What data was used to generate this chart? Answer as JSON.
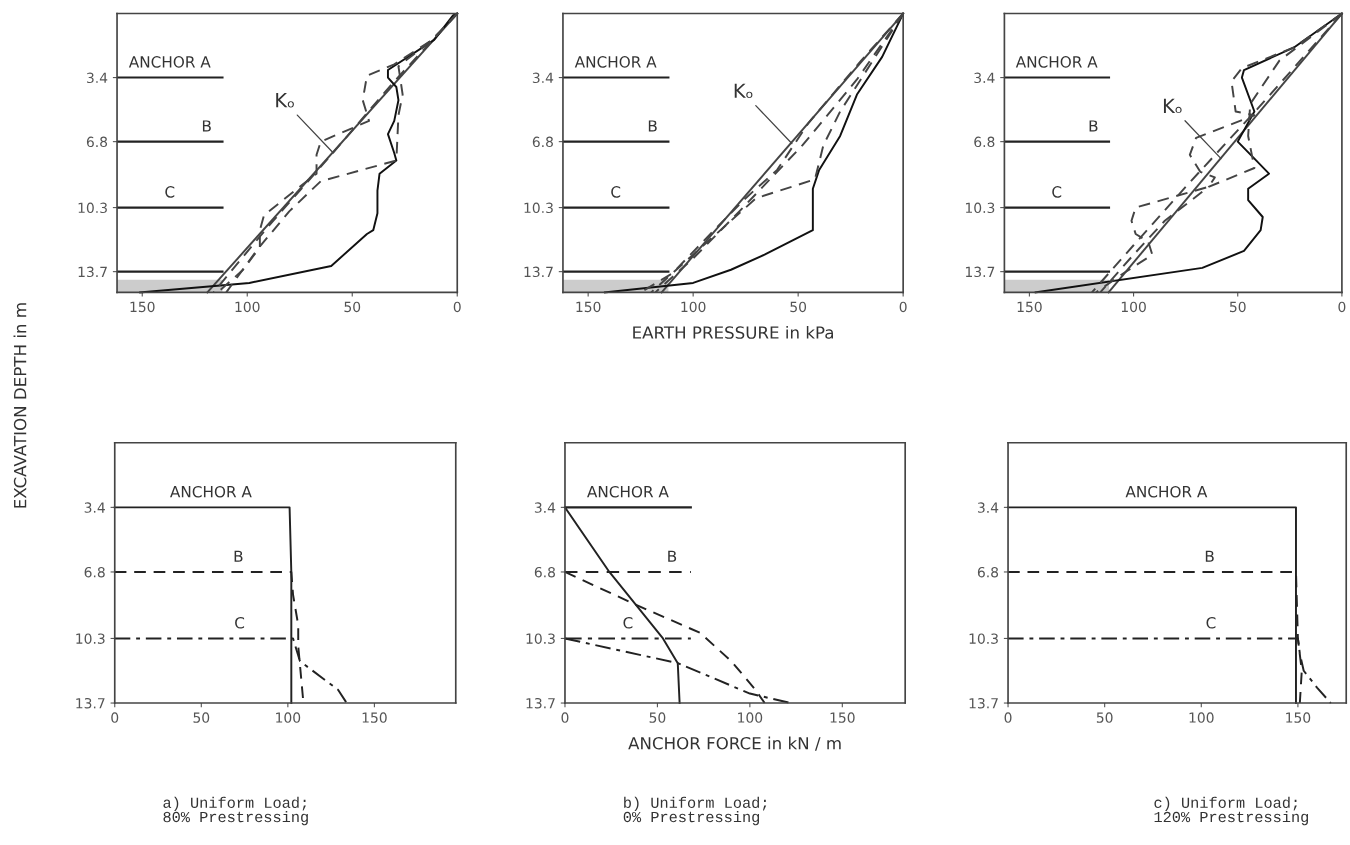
{
  "chart_data": [
    {
      "type": "line",
      "ylabel": "EXCAVATION DEPTH in m",
      "xlim": [
        162,
        0
      ],
      "ylim": [
        14.8,
        0
      ],
      "xticks": [
        150,
        100,
        50,
        0
      ],
      "yticks": [
        3.4,
        6.8,
        10.3,
        13.7
      ],
      "grid": false,
      "legend": false,
      "series": [
        {
          "color": "#444444",
          "line_style": "solid",
          "x": [
            0,
            119
          ],
          "values": [
            0,
            14.8
          ]
        },
        {
          "color": "#111111",
          "line_style": "solid",
          "x": [
            0,
            2,
            11,
            33,
            33,
            29,
            28,
            30,
            33,
            30,
            29,
            37,
            38,
            38,
            40,
            43,
            60,
            99,
            151
          ],
          "values": [
            0,
            0.1,
            1.4,
            3.0,
            3.4,
            3.9,
            4.6,
            5.7,
            6.4,
            7.4,
            7.8,
            8.5,
            9.4,
            10.6,
            11.5,
            11.7,
            13.4,
            14.3,
            14.8
          ]
        },
        {
          "color": "#444444",
          "line_style": "dashed",
          "x": [
            0,
            12,
            30,
            43,
            45,
            42,
            65,
            67,
            67,
            75,
            92,
            94,
            94,
            102,
            114
          ],
          "values": [
            0,
            1.4,
            2.7,
            3.3,
            4.6,
            5.7,
            6.8,
            7.5,
            8.5,
            9.2,
            10.7,
            11.5,
            12.4,
            13.6,
            14.8
          ]
        },
        {
          "color": "#444444",
          "line_style": "dashed",
          "x": [
            0,
            12,
            28,
            26,
            28,
            29,
            65,
            80,
            95,
            110
          ],
          "values": [
            0,
            1.4,
            2.8,
            4.3,
            5.4,
            7.8,
            8.9,
            10.5,
            12.5,
            14.8
          ]
        },
        {
          "color": "#444444",
          "line_style": "dashed",
          "x": [
            0,
            30,
            60,
            90,
            116
          ],
          "values": [
            0,
            3.6,
            7.5,
            11.3,
            14.8
          ]
        }
      ],
      "ref_lines": [
        {
          "axis": "y",
          "value": 3.4,
          "label": "ANCHOR A",
          "line_style": "solid"
        },
        {
          "axis": "y",
          "value": 6.8,
          "label": "B",
          "line_style": "solid"
        },
        {
          "axis": "y",
          "value": 10.3,
          "label": "C",
          "line_style": "solid"
        },
        {
          "axis": "y",
          "value": 13.7,
          "line_style": "solid"
        }
      ],
      "annotations": [
        {
          "text": "Kₒ",
          "x": 59,
          "y": 7.4
        }
      ]
    },
    {
      "type": "line",
      "xlabel": "EARTH PRESSURE in kPa",
      "xlim": [
        162,
        0
      ],
      "ylim": [
        14.8,
        0
      ],
      "xticks": [
        150,
        100,
        50,
        0
      ],
      "yticks": [
        3.4,
        6.8,
        10.3,
        13.7
      ],
      "grid": false,
      "legend": false,
      "series": [
        {
          "color": "#444444",
          "line_style": "solid",
          "x": [
            0,
            115
          ],
          "values": [
            0,
            14.8
          ]
        },
        {
          "color": "#111111",
          "line_style": "solid",
          "x": [
            0,
            10,
            22,
            30,
            40,
            43,
            43,
            43,
            66,
            82,
            100,
            142
          ],
          "values": [
            0,
            2.3,
            4.3,
            6.5,
            8.3,
            9.3,
            10.6,
            11.5,
            12.8,
            13.6,
            14.3,
            14.8
          ]
        },
        {
          "color": "#444444",
          "line_style": "dashed",
          "x": [
            0,
            20,
            45,
            60,
            75,
            90,
            110,
            125
          ],
          "values": [
            0,
            2.5,
            5.8,
            8.3,
            9.8,
            11.5,
            13.8,
            14.8
          ]
        },
        {
          "color": "#444444",
          "line_style": "dashed",
          "x": [
            0,
            15,
            30,
            38,
            42,
            70,
            90,
            120
          ],
          "values": [
            0,
            2.6,
            5.2,
            7.0,
            8.8,
            9.8,
            11.8,
            14.8
          ]
        },
        {
          "color": "#444444",
          "line_style": "dashed",
          "x": [
            0,
            22,
            48,
            78,
            100,
            118
          ],
          "values": [
            0,
            3.5,
            7.0,
            10.5,
            13.0,
            14.8
          ]
        }
      ],
      "ref_lines": [
        {
          "axis": "y",
          "value": 3.4,
          "label": "ANCHOR A",
          "line_style": "solid"
        },
        {
          "axis": "y",
          "value": 6.8,
          "label": "B",
          "line_style": "solid"
        },
        {
          "axis": "y",
          "value": 10.3,
          "label": "C",
          "line_style": "solid"
        },
        {
          "axis": "y",
          "value": 13.7,
          "line_style": "solid"
        }
      ],
      "annotations": [
        {
          "text": "Kₒ",
          "x": 53,
          "y": 6.9
        }
      ]
    },
    {
      "type": "line",
      "xlim": [
        162,
        0
      ],
      "ylim": [
        14.8,
        0
      ],
      "xticks": [
        150,
        100,
        50,
        0
      ],
      "yticks": [
        3.4,
        6.8,
        10.3,
        13.7
      ],
      "grid": false,
      "legend": false,
      "series": [
        {
          "color": "#444444",
          "line_style": "solid",
          "x": [
            0,
            112
          ],
          "values": [
            0,
            14.8
          ]
        },
        {
          "color": "#111111",
          "line_style": "solid",
          "x": [
            0,
            23,
            47,
            48,
            42,
            50,
            42,
            35,
            45,
            45,
            38,
            39,
            47,
            67,
            147
          ],
          "values": [
            0,
            1.8,
            3.0,
            3.4,
            5.2,
            6.8,
            7.7,
            8.5,
            9.3,
            9.9,
            10.8,
            11.5,
            12.6,
            13.5,
            14.8
          ]
        },
        {
          "color": "#444444",
          "line_style": "dashed",
          "x": [
            0,
            23,
            48,
            53,
            51,
            42,
            70,
            73,
            68,
            61,
            64,
            99,
            101,
            99,
            93,
            91,
            105,
            118
          ],
          "values": [
            0,
            1.8,
            2.9,
            3.6,
            5.2,
            5.4,
            6.6,
            7.5,
            8.4,
            8.7,
            9.2,
            10.3,
            11.0,
            11.7,
            12.1,
            12.8,
            13.8,
            14.8
          ]
        },
        {
          "color": "#444444",
          "line_style": "dashed",
          "x": [
            0,
            30,
            44,
            45,
            42,
            64,
            85,
            100,
            116
          ],
          "values": [
            0,
            2.5,
            4.8,
            6.5,
            8.2,
            9.2,
            11.0,
            12.8,
            14.8
          ]
        },
        {
          "color": "#444444",
          "line_style": "dashed",
          "x": [
            0,
            40,
            75,
            100,
            120
          ],
          "values": [
            0,
            5.0,
            9.2,
            12.3,
            14.8
          ]
        }
      ],
      "ref_lines": [
        {
          "axis": "y",
          "value": 3.4,
          "label": "ANCHOR A",
          "line_style": "solid"
        },
        {
          "axis": "y",
          "value": 6.8,
          "label": "B",
          "line_style": "solid"
        },
        {
          "axis": "y",
          "value": 10.3,
          "label": "C",
          "line_style": "solid"
        },
        {
          "axis": "y",
          "value": 13.7,
          "line_style": "solid"
        }
      ],
      "annotations": [
        {
          "text": "Kₒ",
          "x": 58,
          "y": 7.7
        }
      ]
    },
    {
      "type": "line",
      "title": "a) Uniform Load;\n80% Prestressing",
      "xlim": [
        0,
        197
      ],
      "ylim": [
        13.7,
        0
      ],
      "xticks": [
        0,
        50,
        100,
        150
      ],
      "yticks": [
        3.4,
        6.8,
        10.3,
        13.7
      ],
      "grid": false,
      "legend": false,
      "series": [
        {
          "name": "ANCHOR A",
          "color": "#222222",
          "line_style": "solid",
          "x": [
            0,
            101,
            102,
            102,
            102
          ],
          "values": [
            3.4,
            3.4,
            6.8,
            10.3,
            13.7
          ]
        },
        {
          "name": "B",
          "color": "#222222",
          "line_style": "dashed",
          "x": [
            0,
            102,
            103,
            106,
            106,
            109
          ],
          "values": [
            6.8,
            6.8,
            8.0,
            9.6,
            10.7,
            13.7
          ]
        },
        {
          "name": "C",
          "color": "#222222",
          "line_style": "dashdot",
          "x": [
            0,
            103,
            107,
            129,
            134
          ],
          "values": [
            10.3,
            10.3,
            11.5,
            13.0,
            13.7
          ]
        }
      ]
    },
    {
      "type": "line",
      "title": "b) Uniform Load;\n0% Prestressing",
      "xlabel": "ANCHOR FORCE in kN / m",
      "xlim": [
        0,
        184
      ],
      "ylim": [
        13.7,
        0
      ],
      "xticks": [
        0,
        50,
        100,
        150
      ],
      "yticks": [
        3.4,
        6.8,
        10.3,
        13.7
      ],
      "grid": false,
      "legend": false,
      "series": [
        {
          "color": "#222222",
          "line_style": "solid",
          "x": [
            0,
            24,
            53,
            61,
            62
          ],
          "values": [
            3.4,
            6.8,
            10.3,
            11.6,
            13.7
          ]
        },
        {
          "color": "#222222",
          "line_style": "dashed",
          "x": [
            0,
            40,
            73,
            90,
            103,
            108
          ],
          "values": [
            6.8,
            8.6,
            10.0,
            11.5,
            13.0,
            13.7
          ]
        },
        {
          "color": "#222222",
          "line_style": "dashdot",
          "x": [
            0,
            61,
            100,
            122
          ],
          "values": [
            10.3,
            11.6,
            13.2,
            13.7
          ]
        }
      ],
      "ref_lines": [
        {
          "axis": "y",
          "value": 3.4,
          "label": "ANCHOR A",
          "line_style": "solid"
        },
        {
          "axis": "y",
          "value": 6.8,
          "label": "B",
          "line_style": "dashed"
        },
        {
          "axis": "y",
          "value": 10.3,
          "label": "C",
          "line_style": "dashdot"
        }
      ]
    },
    {
      "type": "line",
      "title": "c) Uniform Load;\n120% Prestressing",
      "xlim": [
        0,
        175
      ],
      "ylim": [
        13.7,
        0
      ],
      "xticks": [
        0,
        50,
        100,
        150
      ],
      "yticks": [
        3.4,
        6.8,
        10.3,
        13.7
      ],
      "grid": false,
      "legend": false,
      "series": [
        {
          "name": "ANCHOR A",
          "color": "#222222",
          "line_style": "solid",
          "x": [
            0,
            149,
            149
          ],
          "values": [
            3.4,
            3.4,
            13.7
          ]
        },
        {
          "name": "B",
          "color": "#222222",
          "line_style": "dashed",
          "x": [
            0,
            149,
            150,
            152,
            151
          ],
          "values": [
            6.8,
            6.8,
            10.3,
            12.0,
            13.7
          ]
        },
        {
          "name": "C",
          "color": "#222222",
          "line_style": "dashdot",
          "x": [
            0,
            150,
            151,
            153,
            160,
            167
          ],
          "values": [
            10.3,
            10.3,
            11.1,
            12.0,
            12.9,
            13.7
          ]
        }
      ]
    }
  ]
}
